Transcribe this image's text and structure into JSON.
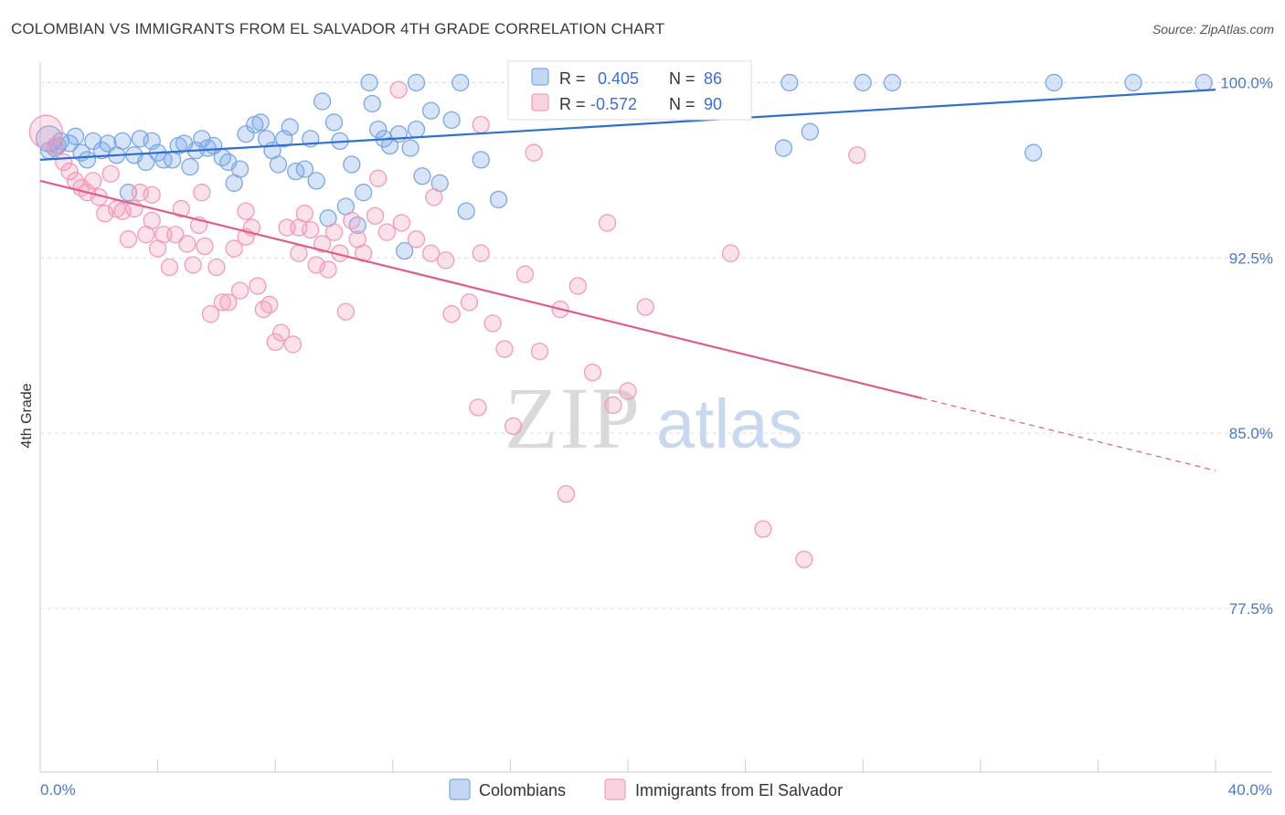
{
  "title": "COLOMBIAN VS IMMIGRANTS FROM EL SALVADOR 4TH GRADE CORRELATION CHART",
  "source": "Source: ZipAtlas.com",
  "watermark": {
    "zip": "ZIP",
    "atlas": "atlas"
  },
  "chart_data": {
    "type": "scatter",
    "xlabel": "",
    "ylabel": "4th Grade",
    "xlim": [
      0,
      40
    ],
    "ylim": [
      70.5,
      100.8
    ],
    "x_tick_labels": [
      {
        "value": 0,
        "label": "0.0%"
      },
      {
        "value": 40,
        "label": "40.0%"
      }
    ],
    "y_ticks": [
      {
        "value": 100,
        "label": "100.0%"
      },
      {
        "value": 92.5,
        "label": "92.5%"
      },
      {
        "value": 85,
        "label": "85.0%"
      },
      {
        "value": 77.5,
        "label": "77.5%"
      }
    ],
    "grid": "horizontal dashed",
    "legend_placement": "top-center",
    "series": [
      {
        "name": "Colombians",
        "color": "#7ba7e6",
        "line_color": "#2f6fce",
        "R": "0.405",
        "N": "86",
        "trend": {
          "x": [
            0,
            40
          ],
          "y": [
            96.7,
            99.7
          ]
        },
        "points": [
          [
            0.3,
            97.6
          ],
          [
            0.5,
            97.2
          ],
          [
            0.7,
            97.5
          ],
          [
            1.0,
            97.4
          ],
          [
            1.2,
            97.7
          ],
          [
            1.4,
            97.0
          ],
          [
            1.6,
            96.7
          ],
          [
            1.8,
            97.5
          ],
          [
            2.1,
            97.1
          ],
          [
            2.3,
            97.4
          ],
          [
            2.6,
            96.9
          ],
          [
            2.8,
            97.5
          ],
          [
            3.0,
            95.3
          ],
          [
            3.2,
            96.9
          ],
          [
            3.4,
            97.6
          ],
          [
            3.6,
            96.6
          ],
          [
            3.8,
            97.5
          ],
          [
            4.0,
            97.0
          ],
          [
            4.2,
            96.7
          ],
          [
            4.5,
            96.7
          ],
          [
            4.7,
            97.3
          ],
          [
            4.9,
            97.4
          ],
          [
            5.1,
            96.4
          ],
          [
            5.3,
            97.1
          ],
          [
            5.5,
            97.6
          ],
          [
            5.7,
            97.2
          ],
          [
            5.9,
            97.3
          ],
          [
            6.2,
            96.8
          ],
          [
            6.4,
            96.6
          ],
          [
            6.6,
            95.7
          ],
          [
            6.8,
            96.3
          ],
          [
            7.0,
            97.8
          ],
          [
            7.3,
            98.2
          ],
          [
            7.5,
            98.3
          ],
          [
            7.7,
            97.6
          ],
          [
            7.9,
            97.1
          ],
          [
            8.1,
            96.5
          ],
          [
            8.3,
            97.6
          ],
          [
            8.5,
            98.1
          ],
          [
            8.7,
            96.2
          ],
          [
            9.0,
            96.3
          ],
          [
            9.2,
            97.6
          ],
          [
            9.4,
            95.8
          ],
          [
            9.6,
            99.2
          ],
          [
            9.8,
            94.2
          ],
          [
            10.0,
            98.3
          ],
          [
            10.2,
            97.5
          ],
          [
            10.4,
            94.7
          ],
          [
            10.6,
            96.5
          ],
          [
            10.8,
            93.9
          ],
          [
            11.0,
            95.3
          ],
          [
            11.3,
            99.1
          ],
          [
            11.5,
            98.0
          ],
          [
            11.7,
            97.6
          ],
          [
            11.9,
            97.3
          ],
          [
            12.2,
            97.8
          ],
          [
            12.4,
            92.8
          ],
          [
            12.6,
            97.2
          ],
          [
            12.8,
            98.0
          ],
          [
            13.0,
            96.0
          ],
          [
            13.3,
            98.8
          ],
          [
            13.6,
            95.7
          ],
          [
            14.0,
            98.4
          ],
          [
            14.5,
            94.5
          ],
          [
            15.0,
            96.7
          ],
          [
            15.6,
            95.0
          ],
          [
            16.5,
            100.0
          ],
          [
            17.5,
            100.0
          ],
          [
            18.5,
            100.0
          ],
          [
            19.2,
            100.0
          ],
          [
            22.0,
            100.0
          ],
          [
            23.5,
            100.0
          ],
          [
            25.5,
            100.0
          ],
          [
            28.0,
            100.0
          ],
          [
            29.0,
            100.0
          ],
          [
            33.8,
            97.0
          ],
          [
            34.5,
            100.0
          ],
          [
            37.2,
            100.0
          ],
          [
            39.6,
            100.0
          ],
          [
            12.8,
            100.0
          ],
          [
            14.3,
            100.0
          ],
          [
            26.2,
            97.9
          ],
          [
            25.3,
            97.2
          ],
          [
            0.3,
            97.1
          ],
          [
            11.2,
            100.0
          ],
          [
            0.6,
            97.3
          ]
        ]
      },
      {
        "name": "Immigrants from El Salvador",
        "color": "#f29bb8",
        "line_color": "#e05c8c",
        "R": "-0.572",
        "N": "90",
        "trend": {
          "x": [
            0,
            30
          ],
          "y": [
            95.8,
            86.5
          ]
        },
        "trend_dashed": {
          "x": [
            30,
            40
          ],
          "y": [
            86.5,
            83.4
          ]
        },
        "points": [
          [
            0.2,
            97.9
          ],
          [
            0.5,
            97.3
          ],
          [
            0.8,
            96.6
          ],
          [
            1.0,
            96.2
          ],
          [
            1.2,
            95.8
          ],
          [
            1.4,
            95.5
          ],
          [
            1.6,
            95.3
          ],
          [
            1.8,
            95.8
          ],
          [
            2.0,
            95.1
          ],
          [
            2.2,
            94.4
          ],
          [
            2.4,
            96.1
          ],
          [
            2.6,
            94.6
          ],
          [
            2.8,
            94.5
          ],
          [
            3.0,
            93.3
          ],
          [
            3.2,
            94.6
          ],
          [
            3.4,
            95.3
          ],
          [
            3.6,
            93.5
          ],
          [
            3.8,
            94.1
          ],
          [
            4.0,
            92.9
          ],
          [
            4.2,
            93.5
          ],
          [
            4.4,
            92.1
          ],
          [
            4.6,
            93.5
          ],
          [
            4.8,
            94.6
          ],
          [
            5.0,
            93.1
          ],
          [
            5.2,
            92.2
          ],
          [
            5.4,
            93.9
          ],
          [
            5.6,
            93.0
          ],
          [
            5.8,
            90.1
          ],
          [
            6.0,
            92.1
          ],
          [
            6.2,
            90.6
          ],
          [
            6.4,
            90.6
          ],
          [
            6.6,
            92.9
          ],
          [
            6.8,
            91.1
          ],
          [
            7.0,
            93.4
          ],
          [
            7.2,
            93.8
          ],
          [
            7.4,
            91.3
          ],
          [
            7.6,
            90.3
          ],
          [
            7.8,
            90.5
          ],
          [
            8.0,
            88.9
          ],
          [
            8.2,
            89.3
          ],
          [
            8.4,
            93.8
          ],
          [
            8.6,
            88.8
          ],
          [
            8.8,
            92.7
          ],
          [
            9.0,
            94.4
          ],
          [
            9.2,
            93.7
          ],
          [
            9.4,
            92.2
          ],
          [
            9.6,
            93.1
          ],
          [
            9.8,
            92.0
          ],
          [
            10.0,
            93.6
          ],
          [
            10.2,
            92.7
          ],
          [
            10.4,
            90.2
          ],
          [
            10.6,
            94.1
          ],
          [
            10.8,
            93.3
          ],
          [
            11.0,
            92.7
          ],
          [
            11.4,
            94.3
          ],
          [
            11.8,
            93.6
          ],
          [
            12.3,
            94.0
          ],
          [
            12.8,
            93.3
          ],
          [
            13.3,
            92.7
          ],
          [
            13.8,
            92.4
          ],
          [
            14.0,
            90.1
          ],
          [
            14.6,
            90.6
          ],
          [
            15.0,
            92.7
          ],
          [
            15.4,
            89.7
          ],
          [
            15.8,
            88.6
          ],
          [
            16.5,
            91.8
          ],
          [
            17.0,
            88.5
          ],
          [
            17.7,
            90.3
          ],
          [
            18.3,
            91.3
          ],
          [
            18.8,
            87.6
          ],
          [
            19.5,
            86.2
          ],
          [
            20.0,
            86.8
          ],
          [
            20.6,
            90.4
          ],
          [
            16.1,
            85.3
          ],
          [
            14.9,
            86.1
          ],
          [
            17.9,
            82.4
          ],
          [
            24.6,
            80.9
          ],
          [
            26.0,
            79.6
          ],
          [
            23.5,
            92.7
          ],
          [
            27.8,
            96.9
          ],
          [
            16.8,
            97.0
          ],
          [
            12.2,
            99.7
          ],
          [
            13.4,
            95.1
          ],
          [
            15.0,
            98.2
          ],
          [
            19.3,
            94.0
          ],
          [
            11.5,
            95.9
          ],
          [
            7.0,
            94.5
          ],
          [
            5.5,
            95.3
          ],
          [
            8.8,
            93.8
          ],
          [
            3.8,
            95.2
          ]
        ]
      }
    ]
  }
}
